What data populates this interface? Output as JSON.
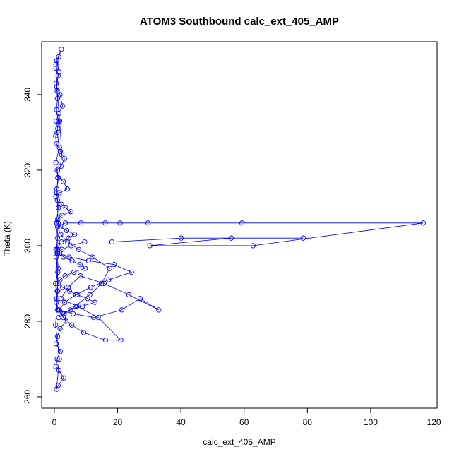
{
  "chart_data": {
    "type": "line",
    "title": "ATOM3 Southbound calc_ext_405_AMP",
    "xlabel": "calc_ext_405_AMP",
    "ylabel": "Theta (K)",
    "xlim": [
      -4,
      121
    ],
    "ylim": [
      257,
      354
    ],
    "xticks": [
      0,
      20,
      40,
      60,
      80,
      100,
      120
    ],
    "yticks": [
      260,
      280,
      300,
      320,
      340
    ],
    "grid": false,
    "marker": "open-circle",
    "color": "#0000ff",
    "series": [
      {
        "x": [
          0.5,
          1.2,
          0.8,
          1.8,
          2.6,
          1.4,
          0.6,
          1.1,
          0.4,
          0.7,
          1.9,
          3.2,
          2.1,
          0.9,
          1.3,
          2.8,
          4.1,
          1.6,
          0.5,
          1.0,
          2.2,
          3.6,
          5.2,
          2.4,
          1.1,
          0.8,
          2.0,
          3.9,
          6.4,
          4.5,
          2.3,
          1.5,
          0.9,
          1.7,
          2.9,
          5.6,
          8.1,
          9.7,
          6.2,
          3.4,
          1.8,
          1.2,
          2.6,
          4.8,
          7.3,
          10.5,
          12.8,
          8.9,
          5.1,
          2.7,
          1.4,
          3.1,
          6.6,
          11.2,
          14.9,
          17.5,
          12.1,
          7.7,
          4.2,
          2.0,
          1.0,
          3.5,
          8.4,
          16.1,
          20.8,
          29.6,
          59.3,
          116.6,
          62.8,
          30.2,
          55.9,
          78.7,
          40.1,
          18.2,
          9.6,
          5.3,
          2.4,
          1.1,
          4.7,
          10.8,
          18.9,
          24.4,
          17.2,
          11.5,
          6.8,
          3.3,
          1.6,
          5.9,
          12.4,
          21.3,
          27.1,
          33.0,
          23.6,
          15.7,
          8.2,
          4.4,
          2.1,
          7.1,
          13.9,
          21.0,
          16.2,
          9.3,
          5.5,
          2.8,
          1.3,
          3.7,
          1.8,
          1.0,
          0.6,
          1.9,
          0.9,
          0.5,
          1.5,
          3.0,
          1.2,
          0.7,
          1.6,
          0.4,
          1.1,
          0.6,
          1.2,
          0.8,
          2.4,
          1.7,
          0.9,
          0.5,
          1.4,
          2.2,
          0.8,
          1.5,
          0.6,
          1.0,
          0.7,
          1.3,
          0.9,
          1.6,
          0.5,
          1.1,
          0.8,
          1.3,
          0.6,
          1.0,
          0.9,
          1.2,
          0.4,
          0.8,
          1.0,
          0.6,
          0.9,
          1.1,
          0.5
        ],
        "y": [
          348,
          345,
          342,
          340,
          337,
          335,
          333,
          331,
          329,
          327,
          325,
          323,
          321,
          320,
          318,
          317,
          315,
          314,
          313,
          312,
          311,
          310,
          309,
          308,
          307,
          306,
          305,
          304,
          303,
          302,
          301,
          300,
          299,
          298,
          297,
          296,
          295,
          294,
          293,
          292,
          291,
          290,
          289,
          288,
          287,
          286,
          285,
          284,
          283,
          282,
          281,
          282,
          284,
          287,
          290,
          294,
          297,
          299,
          301,
          303,
          305,
          306,
          306,
          306,
          306,
          306,
          306,
          306,
          300,
          300,
          302,
          302,
          302,
          301,
          301,
          300,
          299,
          298,
          297,
          296,
          295,
          293,
          291,
          289,
          287,
          285,
          283,
          282,
          281,
          283,
          286,
          283,
          287,
          290,
          292,
          289,
          286,
          284,
          281,
          275,
          275,
          277,
          279,
          281,
          283,
          280,
          278,
          276,
          274,
          272,
          270,
          268,
          267,
          265,
          263,
          262,
          270,
          279,
          288,
          297,
          306,
          315,
          324,
          333,
          341,
          347,
          350,
          352,
          349,
          346,
          343,
          339,
          336,
          333,
          330,
          326,
          322,
          318,
          314,
          310,
          306,
          302,
          298,
          294,
          290,
          286,
          283,
          285,
          288,
          293,
          299
        ]
      }
    ]
  }
}
